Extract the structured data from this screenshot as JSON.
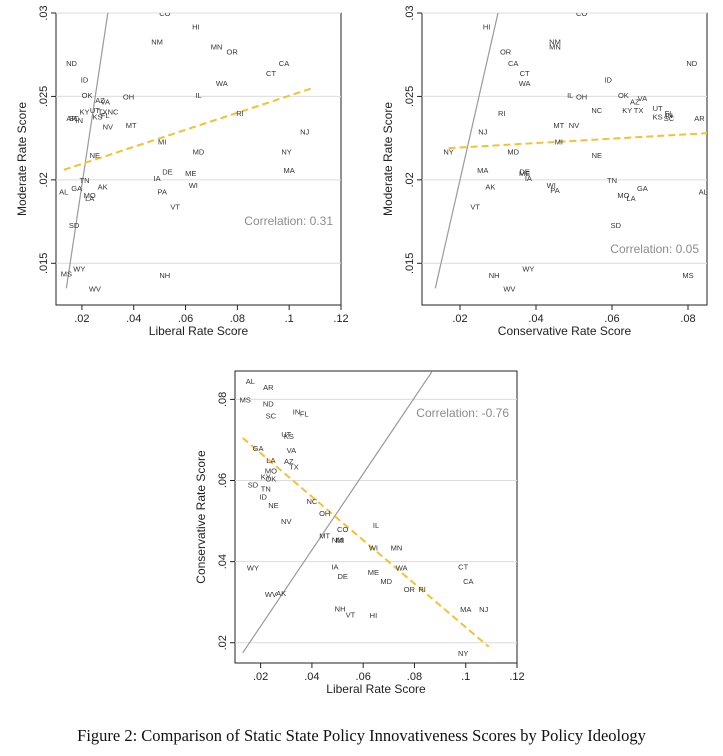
{
  "caption": "Figure 2: Comparison of Static State Policy Innovativeness Scores by Policy Ideology",
  "chart_data": [
    {
      "type": "scatter",
      "xlabel": "Liberal Rate Score",
      "ylabel": "Moderate Rate Score",
      "xlim": [
        0.01,
        0.12
      ],
      "ylim": [
        0.0125,
        0.03
      ],
      "xticks": [
        0.02,
        0.04,
        0.06,
        0.08,
        0.1,
        0.12
      ],
      "xtick_labels": [
        ".02",
        ".04",
        ".06",
        ".08",
        ".1",
        ".12"
      ],
      "yticks": [
        0.015,
        0.02,
        0.025,
        0.03
      ],
      "ytick_labels": [
        ".015",
        ".02",
        ".025",
        ".03"
      ],
      "annotation": "Correlation: 0.31",
      "grid": "horizontal",
      "points": [
        {
          "label": "CO",
          "x": 0.052,
          "y": 0.03
        },
        {
          "label": "HI",
          "x": 0.064,
          "y": 0.0292
        },
        {
          "label": "NM",
          "x": 0.049,
          "y": 0.0283
        },
        {
          "label": "MN",
          "x": 0.072,
          "y": 0.028
        },
        {
          "label": "OR",
          "x": 0.078,
          "y": 0.0277
        },
        {
          "label": "ND",
          "x": 0.016,
          "y": 0.027
        },
        {
          "label": "CA",
          "x": 0.098,
          "y": 0.027
        },
        {
          "label": "CT",
          "x": 0.093,
          "y": 0.0264
        },
        {
          "label": "ID",
          "x": 0.021,
          "y": 0.026
        },
        {
          "label": "WA",
          "x": 0.074,
          "y": 0.0258
        },
        {
          "label": "OK",
          "x": 0.022,
          "y": 0.0251
        },
        {
          "label": "IL",
          "x": 0.065,
          "y": 0.0251
        },
        {
          "label": "OH",
          "x": 0.038,
          "y": 0.025
        },
        {
          "label": "AZ",
          "x": 0.027,
          "y": 0.0248
        },
        {
          "label": "VA",
          "x": 0.029,
          "y": 0.0247
        },
        {
          "label": "UT",
          "x": 0.025,
          "y": 0.0242
        },
        {
          "label": "KY",
          "x": 0.021,
          "y": 0.0241
        },
        {
          "label": "TX",
          "x": 0.028,
          "y": 0.0241
        },
        {
          "label": "NC",
          "x": 0.032,
          "y": 0.0241
        },
        {
          "label": "FL",
          "x": 0.029,
          "y": 0.0239
        },
        {
          "label": "KS",
          "x": 0.026,
          "y": 0.0238
        },
        {
          "label": "AR",
          "x": 0.016,
          "y": 0.0237
        },
        {
          "label": "SC",
          "x": 0.017,
          "y": 0.0237
        },
        {
          "label": "IN",
          "x": 0.019,
          "y": 0.0236
        },
        {
          "label": "RI",
          "x": 0.081,
          "y": 0.024
        },
        {
          "label": "NV",
          "x": 0.03,
          "y": 0.0232
        },
        {
          "label": "MT",
          "x": 0.039,
          "y": 0.0233
        },
        {
          "label": "NJ",
          "x": 0.106,
          "y": 0.0229
        },
        {
          "label": "MI",
          "x": 0.051,
          "y": 0.0223
        },
        {
          "label": "MD",
          "x": 0.065,
          "y": 0.0217
        },
        {
          "label": "NY",
          "x": 0.099,
          "y": 0.0217
        },
        {
          "label": "NE",
          "x": 0.025,
          "y": 0.0215
        },
        {
          "label": "MA",
          "x": 0.1,
          "y": 0.0206
        },
        {
          "label": "DE",
          "x": 0.053,
          "y": 0.0205
        },
        {
          "label": "ME",
          "x": 0.062,
          "y": 0.0204
        },
        {
          "label": "TN",
          "x": 0.021,
          "y": 0.02
        },
        {
          "label": "IA",
          "x": 0.049,
          "y": 0.0201
        },
        {
          "label": "AK",
          "x": 0.028,
          "y": 0.0196
        },
        {
          "label": "WI",
          "x": 0.063,
          "y": 0.0197
        },
        {
          "label": "AL",
          "x": 0.013,
          "y": 0.0193
        },
        {
          "label": "GA",
          "x": 0.018,
          "y": 0.0195
        },
        {
          "label": "PA",
          "x": 0.051,
          "y": 0.0193
        },
        {
          "label": "MO",
          "x": 0.023,
          "y": 0.0191
        },
        {
          "label": "LA",
          "x": 0.023,
          "y": 0.0189
        },
        {
          "label": "VT",
          "x": 0.056,
          "y": 0.0184
        },
        {
          "label": "SD",
          "x": 0.017,
          "y": 0.0173
        },
        {
          "label": "WY",
          "x": 0.019,
          "y": 0.0147
        },
        {
          "label": "MS",
          "x": 0.014,
          "y": 0.0144
        },
        {
          "label": "NH",
          "x": 0.052,
          "y": 0.0143
        },
        {
          "label": "WV",
          "x": 0.025,
          "y": 0.0135
        }
      ],
      "diagonal_line": {
        "x": [
          0.014,
          0.03
        ],
        "y": [
          0.0135,
          0.03
        ]
      },
      "fit_line": {
        "x": [
          0.013,
          0.109
        ],
        "y": [
          0.0206,
          0.0255
        ]
      }
    },
    {
      "type": "scatter",
      "xlabel": "Conservative Rate Score",
      "ylabel": "Moderate Rate Score",
      "xlim": [
        0.01,
        0.085
      ],
      "ylim": [
        0.0125,
        0.03
      ],
      "xticks": [
        0.02,
        0.04,
        0.06,
        0.08
      ],
      "xtick_labels": [
        ".02",
        ".04",
        ".06",
        ".08"
      ],
      "yticks": [
        0.015,
        0.02,
        0.025,
        0.03
      ],
      "ytick_labels": [
        ".015",
        ".02",
        ".025",
        ".03"
      ],
      "annotation": "Correlation: 0.05",
      "grid": "horizontal",
      "points": [
        {
          "label": "CO",
          "x": 0.052,
          "y": 0.03
        },
        {
          "label": "HI",
          "x": 0.027,
          "y": 0.0292
        },
        {
          "label": "NM",
          "x": 0.045,
          "y": 0.0283
        },
        {
          "label": "MN",
          "x": 0.045,
          "y": 0.028
        },
        {
          "label": "OR",
          "x": 0.032,
          "y": 0.0277
        },
        {
          "label": "CA",
          "x": 0.034,
          "y": 0.027
        },
        {
          "label": "ND",
          "x": 0.081,
          "y": 0.027
        },
        {
          "label": "CT",
          "x": 0.037,
          "y": 0.0264
        },
        {
          "label": "WA",
          "x": 0.037,
          "y": 0.0258
        },
        {
          "label": "ID",
          "x": 0.059,
          "y": 0.026
        },
        {
          "label": "OK",
          "x": 0.063,
          "y": 0.0251
        },
        {
          "label": "IL",
          "x": 0.049,
          "y": 0.0251
        },
        {
          "label": "OH",
          "x": 0.052,
          "y": 0.025
        },
        {
          "label": "VA",
          "x": 0.068,
          "y": 0.0249
        },
        {
          "label": "AZ",
          "x": 0.066,
          "y": 0.0247
        },
        {
          "label": "NC",
          "x": 0.056,
          "y": 0.0242
        },
        {
          "label": "UT",
          "x": 0.072,
          "y": 0.0243
        },
        {
          "label": "KY",
          "x": 0.064,
          "y": 0.0242
        },
        {
          "label": "TX",
          "x": 0.067,
          "y": 0.0242
        },
        {
          "label": "FL",
          "x": 0.075,
          "y": 0.024
        },
        {
          "label": "IN",
          "x": 0.075,
          "y": 0.0239
        },
        {
          "label": "KS",
          "x": 0.072,
          "y": 0.0238
        },
        {
          "label": "SC",
          "x": 0.075,
          "y": 0.0237
        },
        {
          "label": "AR",
          "x": 0.083,
          "y": 0.0237
        },
        {
          "label": "RI",
          "x": 0.031,
          "y": 0.024
        },
        {
          "label": "MT",
          "x": 0.046,
          "y": 0.0233
        },
        {
          "label": "NV",
          "x": 0.05,
          "y": 0.0233
        },
        {
          "label": "NJ",
          "x": 0.026,
          "y": 0.0229
        },
        {
          "label": "MI",
          "x": 0.046,
          "y": 0.0223
        },
        {
          "label": "NY",
          "x": 0.017,
          "y": 0.0217
        },
        {
          "label": "MD",
          "x": 0.034,
          "y": 0.0217
        },
        {
          "label": "NE",
          "x": 0.056,
          "y": 0.0215
        },
        {
          "label": "MA",
          "x": 0.026,
          "y": 0.0206
        },
        {
          "label": "DE",
          "x": 0.037,
          "y": 0.0205
        },
        {
          "label": "ME",
          "x": 0.037,
          "y": 0.0204
        },
        {
          "label": "IA",
          "x": 0.038,
          "y": 0.0201
        },
        {
          "label": "TN",
          "x": 0.06,
          "y": 0.02
        },
        {
          "label": "AK",
          "x": 0.028,
          "y": 0.0196
        },
        {
          "label": "WI",
          "x": 0.044,
          "y": 0.0197
        },
        {
          "label": "PA",
          "x": 0.045,
          "y": 0.0194
        },
        {
          "label": "GA",
          "x": 0.068,
          "y": 0.0195
        },
        {
          "label": "AL",
          "x": 0.084,
          "y": 0.0193
        },
        {
          "label": "MO",
          "x": 0.063,
          "y": 0.0191
        },
        {
          "label": "LA",
          "x": 0.065,
          "y": 0.0189
        },
        {
          "label": "VT",
          "x": 0.024,
          "y": 0.0184
        },
        {
          "label": "SD",
          "x": 0.061,
          "y": 0.0173
        },
        {
          "label": "WY",
          "x": 0.038,
          "y": 0.0147
        },
        {
          "label": "NH",
          "x": 0.029,
          "y": 0.0143
        },
        {
          "label": "MS",
          "x": 0.08,
          "y": 0.0143
        },
        {
          "label": "WV",
          "x": 0.033,
          "y": 0.0135
        }
      ],
      "diagonal_line": {
        "x": [
          0.0135,
          0.03
        ],
        "y": [
          0.0135,
          0.03
        ]
      },
      "fit_line": {
        "x": [
          0.017,
          0.085
        ],
        "y": [
          0.0219,
          0.0228
        ]
      }
    },
    {
      "type": "scatter",
      "xlabel": "Liberal Rate Score",
      "ylabel": "Conservative Rate Score",
      "xlim": [
        0.01,
        0.12
      ],
      "ylim": [
        0.015,
        0.087
      ],
      "xticks": [
        0.02,
        0.04,
        0.06,
        0.08,
        0.1,
        0.12
      ],
      "xtick_labels": [
        ".02",
        ".04",
        ".06",
        ".08",
        ".1",
        ".12"
      ],
      "yticks": [
        0.02,
        0.04,
        0.06,
        0.08
      ],
      "ytick_labels": [
        ".02",
        ".04",
        ".06",
        ".08"
      ],
      "annotation": "Correlation: -0.76",
      "grid": "horizontal",
      "points": [
        {
          "label": "AL",
          "x": 0.016,
          "y": 0.0845
        },
        {
          "label": "AR",
          "x": 0.023,
          "y": 0.083
        },
        {
          "label": "MS",
          "x": 0.014,
          "y": 0.08
        },
        {
          "label": "ND",
          "x": 0.023,
          "y": 0.079
        },
        {
          "label": "IN",
          "x": 0.034,
          "y": 0.077
        },
        {
          "label": "FL",
          "x": 0.037,
          "y": 0.0765
        },
        {
          "label": "SC",
          "x": 0.024,
          "y": 0.076
        },
        {
          "label": "UT",
          "x": 0.03,
          "y": 0.0715
        },
        {
          "label": "KS",
          "x": 0.031,
          "y": 0.071
        },
        {
          "label": "GA",
          "x": 0.019,
          "y": 0.068
        },
        {
          "label": "VA",
          "x": 0.032,
          "y": 0.0675
        },
        {
          "label": "LA",
          "x": 0.024,
          "y": 0.065
        },
        {
          "label": "AZ",
          "x": 0.031,
          "y": 0.0648
        },
        {
          "label": "TX",
          "x": 0.033,
          "y": 0.0635
        },
        {
          "label": "MO",
          "x": 0.024,
          "y": 0.0625
        },
        {
          "label": "KY",
          "x": 0.022,
          "y": 0.061
        },
        {
          "label": "OK",
          "x": 0.024,
          "y": 0.0605
        },
        {
          "label": "SD",
          "x": 0.017,
          "y": 0.059
        },
        {
          "label": "TN",
          "x": 0.022,
          "y": 0.058
        },
        {
          "label": "ID",
          "x": 0.021,
          "y": 0.056
        },
        {
          "label": "NC",
          "x": 0.04,
          "y": 0.055
        },
        {
          "label": "NE",
          "x": 0.025,
          "y": 0.054
        },
        {
          "label": "OH",
          "x": 0.045,
          "y": 0.052
        },
        {
          "label": "NV",
          "x": 0.03,
          "y": 0.05
        },
        {
          "label": "IL",
          "x": 0.065,
          "y": 0.049
        },
        {
          "label": "CO",
          "x": 0.052,
          "y": 0.048
        },
        {
          "label": "MT",
          "x": 0.045,
          "y": 0.0465
        },
        {
          "label": "NM",
          "x": 0.05,
          "y": 0.0455
        },
        {
          "label": "MI",
          "x": 0.051,
          "y": 0.0453
        },
        {
          "label": "WI",
          "x": 0.064,
          "y": 0.0435
        },
        {
          "label": "MN",
          "x": 0.073,
          "y": 0.0435
        },
        {
          "label": "WY",
          "x": 0.017,
          "y": 0.0385
        },
        {
          "label": "IA",
          "x": 0.049,
          "y": 0.0388
        },
        {
          "label": "WA",
          "x": 0.075,
          "y": 0.0385
        },
        {
          "label": "CT",
          "x": 0.099,
          "y": 0.0388
        },
        {
          "label": "ME",
          "x": 0.064,
          "y": 0.0375
        },
        {
          "label": "DE",
          "x": 0.052,
          "y": 0.0365
        },
        {
          "label": "MD",
          "x": 0.069,
          "y": 0.0352
        },
        {
          "label": "CA",
          "x": 0.101,
          "y": 0.0352
        },
        {
          "label": "OR",
          "x": 0.078,
          "y": 0.0333
        },
        {
          "label": "RI",
          "x": 0.083,
          "y": 0.0333
        },
        {
          "label": "WV",
          "x": 0.024,
          "y": 0.032
        },
        {
          "label": "AK",
          "x": 0.028,
          "y": 0.0322
        },
        {
          "label": "NH",
          "x": 0.051,
          "y": 0.0285
        },
        {
          "label": "VT",
          "x": 0.055,
          "y": 0.027
        },
        {
          "label": "HI",
          "x": 0.064,
          "y": 0.0268
        },
        {
          "label": "MA",
          "x": 0.1,
          "y": 0.0283
        },
        {
          "label": "NJ",
          "x": 0.107,
          "y": 0.0283
        },
        {
          "label": "NY",
          "x": 0.099,
          "y": 0.0175
        }
      ],
      "diagonal_line": {
        "x": [
          0.013,
          0.087
        ],
        "y": [
          0.0175,
          0.087
        ]
      },
      "fit_line": {
        "x": [
          0.013,
          0.109
        ],
        "y": [
          0.0705,
          0.019
        ]
      }
    }
  ]
}
